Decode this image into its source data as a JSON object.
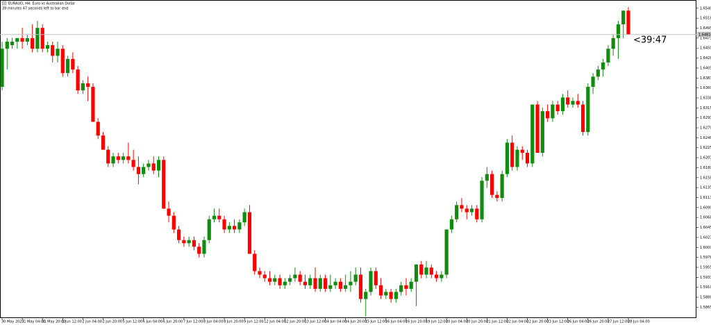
{
  "chart_data": {
    "type": "candlestick",
    "title": "EURAUD, H4: Euro vs Australian Dollar",
    "subtitle": "39 minutes 47 seconds left to bar end",
    "countdown": "<39:47",
    "up_color": "#118c11",
    "down_color": "#ff0000",
    "categories": [
      "30 May 2023",
      null,
      null,
      null,
      "31 May 04:00",
      null,
      null,
      null,
      "31 May 20:00",
      null,
      null,
      null,
      "1 Jun 12:00",
      null,
      null,
      null,
      "2 Jun 04:00",
      null,
      null,
      null,
      "2 Jun 20:00",
      null,
      null,
      null,
      "5 Jun 12:00",
      null,
      null,
      null,
      "6 Jun 04:00",
      null,
      null,
      null,
      "6 Jun 20:00",
      null,
      null,
      null,
      "7 Jun 12:00",
      null,
      null,
      null,
      "8 Jun 04:00",
      null,
      null,
      null,
      "8 Jun 20:00",
      null,
      null,
      null,
      "9 Jun 12:00",
      null,
      null,
      null,
      "12 Jun 04:00",
      null,
      null,
      null,
      "12 Jun 20:00",
      null,
      null,
      null,
      "13 Jun 12:00",
      null,
      null,
      null,
      "14 Jun 04:00",
      null,
      null,
      null,
      "14 Jun 20:00",
      null,
      null,
      null,
      "15 Jun 12:00",
      null,
      null,
      null,
      "16 Jun 04:00",
      null,
      null,
      null,
      "16 Jun 20:00",
      null,
      null,
      null,
      "19 Jun 12:00",
      null,
      null,
      null,
      "20 Jun 04:00",
      null,
      null,
      null,
      "20 Jun 20:00",
      null,
      null,
      null,
      "21 Jun 12:00",
      null,
      null,
      null,
      "22 Jun 04:00",
      null,
      null,
      null,
      "22 Jun 20:00",
      null,
      null,
      null,
      "23 Jun 12:00",
      null,
      null,
      null,
      "26 Jun 04:00",
      null,
      null,
      null,
      "26 Jun 20:00",
      null,
      null,
      null,
      "27 Jun 12:00",
      null,
      null,
      null,
      "28 Jun 04:00"
    ],
    "open": [
      1.6363,
      1.6449,
      1.6457,
      1.6465,
      1.6473,
      1.6465,
      1.6473,
      1.6449,
      1.6496,
      1.6449,
      1.6457,
      1.6433,
      1.6449,
      1.6394,
      1.6426,
      1.6402,
      1.6355,
      1.6371,
      1.6363,
      1.6284,
      1.6253,
      1.6221,
      1.619,
      1.6206,
      1.6198,
      1.6206,
      1.6198,
      1.6182,
      1.6166,
      1.6182,
      1.619,
      1.6174,
      1.6198,
      1.6088,
      1.6072,
      1.6041,
      1.6017,
      1.601,
      1.6017,
      1.6002,
      1.5986,
      1.6017,
      1.6064,
      1.6072,
      1.6064,
      1.6041,
      1.6049,
      1.6041,
      1.6057,
      1.608,
      1.5986,
      1.5947,
      1.5939,
      1.5931,
      1.5923,
      1.5931,
      1.5915,
      1.5923,
      1.5931,
      1.5939,
      1.5923,
      1.5915,
      1.5931,
      1.5907,
      1.5931,
      1.5907,
      1.5915,
      1.5923,
      1.5907,
      1.5915,
      1.5923,
      1.5939,
      1.5884,
      1.59,
      1.5947,
      1.5915,
      1.5892,
      1.59,
      1.5884,
      1.59,
      1.5915,
      1.5907,
      1.5923,
      1.5962,
      1.5939,
      1.5955,
      1.5939,
      1.5931,
      1.5939,
      1.6041,
      1.6064,
      1.6096,
      1.6088,
      1.608,
      1.6088,
      1.6064,
      1.6151,
      1.6166,
      1.6119,
      1.6112,
      1.6166,
      1.6237,
      1.6182,
      1.6221,
      1.6214,
      1.619,
      1.6323,
      1.6214,
      1.6308,
      1.6292,
      1.6323,
      1.6308,
      1.6339,
      1.6323,
      1.6331,
      1.6323,
      1.6261,
      1.6363,
      1.6386,
      1.6402,
      1.6418,
      1.6449,
      1.6473,
      1.6504,
      1.6535
    ],
    "high": [
      1.6465,
      1.6473,
      1.6473,
      1.6473,
      1.6496,
      1.6481,
      1.6504,
      1.6512,
      1.6504,
      1.6465,
      1.6465,
      1.6465,
      1.6457,
      1.6433,
      1.6441,
      1.641,
      1.6378,
      1.6386,
      1.6371,
      1.6292,
      1.6261,
      1.6229,
      1.6214,
      1.6214,
      1.6214,
      1.6237,
      1.6221,
      1.6206,
      1.619,
      1.6198,
      1.6206,
      1.6206,
      1.6206,
      1.6104,
      1.608,
      1.6049,
      1.6025,
      1.6025,
      1.6025,
      1.601,
      1.6025,
      1.6072,
      1.6088,
      1.6088,
      1.6072,
      1.6057,
      1.6064,
      1.6064,
      1.6088,
      1.6096,
      1.5994,
      1.5955,
      1.5947,
      1.5947,
      1.5939,
      1.5939,
      1.5931,
      1.5939,
      1.5955,
      1.5947,
      1.5939,
      1.5939,
      1.5955,
      1.5939,
      1.5939,
      1.5939,
      1.5931,
      1.5931,
      1.5939,
      1.5947,
      1.5955,
      1.5955,
      1.5907,
      1.5955,
      1.5955,
      1.5931,
      1.5907,
      1.5907,
      1.5907,
      1.5923,
      1.5931,
      1.5931,
      1.5962,
      1.597,
      1.597,
      1.5962,
      1.5947,
      1.5947,
      1.6041,
      1.6072,
      1.6104,
      1.6112,
      1.6096,
      1.6096,
      1.6096,
      1.6159,
      1.6182,
      1.6174,
      1.6127,
      1.6174,
      1.6245,
      1.6253,
      1.6229,
      1.6229,
      1.6221,
      1.6323,
      1.6331,
      1.6316,
      1.6323,
      1.6331,
      1.6331,
      1.6347,
      1.6355,
      1.6339,
      1.6347,
      1.6331,
      1.6371,
      1.6394,
      1.641,
      1.6426,
      1.6457,
      1.6481,
      1.6512,
      1.6535,
      1.6543
    ],
    "low": [
      1.6355,
      1.6402,
      1.6449,
      1.6449,
      1.6449,
      1.6457,
      1.6441,
      1.6441,
      1.6441,
      1.6441,
      1.6418,
      1.6418,
      1.6386,
      1.6386,
      1.6394,
      1.6347,
      1.6347,
      1.6331,
      1.6284,
      1.6245,
      1.6221,
      1.6182,
      1.6182,
      1.619,
      1.619,
      1.619,
      1.6174,
      1.6143,
      1.6159,
      1.6174,
      1.6166,
      1.6159,
      1.6088,
      1.6057,
      1.6033,
      1.601,
      1.6002,
      1.6002,
      1.5994,
      1.5978,
      1.5978,
      1.601,
      1.6057,
      1.6057,
      1.6033,
      1.6033,
      1.6033,
      1.6033,
      1.6049,
      1.5986,
      1.5939,
      1.5931,
      1.5923,
      1.5915,
      1.5915,
      1.5907,
      1.5907,
      1.5915,
      1.5923,
      1.5915,
      1.5907,
      1.5907,
      1.59,
      1.59,
      1.59,
      1.59,
      1.5907,
      1.59,
      1.59,
      1.59,
      1.5915,
      1.5876,
      1.5845,
      1.5892,
      1.5907,
      1.5884,
      1.5884,
      1.5876,
      1.5876,
      1.5892,
      1.5892,
      1.59,
      1.5868,
      1.5931,
      1.5931,
      1.5931,
      1.5923,
      1.5923,
      1.5931,
      1.6033,
      1.6057,
      1.608,
      1.6064,
      1.6072,
      1.6057,
      1.6057,
      1.6135,
      1.6112,
      1.6104,
      1.6104,
      1.6159,
      1.6174,
      1.6174,
      1.6198,
      1.6182,
      1.6182,
      1.6214,
      1.6206,
      1.6284,
      1.6284,
      1.63,
      1.63,
      1.6316,
      1.6316,
      1.6316,
      1.6253,
      1.6253,
      1.6347,
      1.6378,
      1.6386,
      1.641,
      1.6433,
      1.6426,
      1.6473,
      1.6481
    ],
    "close": [
      1.6449,
      1.6465,
      1.6465,
      1.6473,
      1.6465,
      1.6473,
      1.6449,
      1.6496,
      1.6449,
      1.6457,
      1.6433,
      1.6449,
      1.6394,
      1.6426,
      1.6402,
      1.6355,
      1.6371,
      1.6363,
      1.6284,
      1.6253,
      1.6221,
      1.619,
      1.6206,
      1.6198,
      1.6206,
      1.6198,
      1.6182,
      1.6166,
      1.6182,
      1.619,
      1.6174,
      1.6198,
      1.6088,
      1.6072,
      1.6041,
      1.6017,
      1.601,
      1.6017,
      1.6002,
      1.5986,
      1.6017,
      1.6064,
      1.6072,
      1.6064,
      1.6041,
      1.6049,
      1.6041,
      1.6057,
      1.608,
      1.5986,
      1.5947,
      1.5939,
      1.5931,
      1.5923,
      1.5931,
      1.5915,
      1.5923,
      1.5931,
      1.5939,
      1.5923,
      1.5915,
      1.5931,
      1.5907,
      1.5931,
      1.5907,
      1.5915,
      1.5923,
      1.5907,
      1.5915,
      1.5923,
      1.5939,
      1.5884,
      1.59,
      1.5947,
      1.5915,
      1.5892,
      1.59,
      1.5884,
      1.59,
      1.5915,
      1.5907,
      1.5923,
      1.5962,
      1.5939,
      1.5955,
      1.5939,
      1.5931,
      1.5939,
      1.6041,
      1.6064,
      1.6096,
      1.6088,
      1.608,
      1.6088,
      1.6064,
      1.6151,
      1.6166,
      1.6119,
      1.6112,
      1.6166,
      1.6237,
      1.6182,
      1.6221,
      1.6214,
      1.619,
      1.6323,
      1.6214,
      1.6308,
      1.6292,
      1.6323,
      1.6308,
      1.6339,
      1.6323,
      1.6331,
      1.6323,
      1.6261,
      1.6363,
      1.6386,
      1.6402,
      1.6418,
      1.6449,
      1.6473,
      1.6504,
      1.6535,
      1.6481
    ],
    "current_price": {
      "value": 1.6481,
      "label": "1.64810"
    },
    "ylim": [
      1.5841,
      1.6559
    ],
    "yticks": [
      1.65405,
      {
        "value": 1.6518,
        "label": "1.65180"
      },
      1.64955,
      {
        "value": 1.6473,
        "label": "1.64730"
      },
      1.64505,
      {
        "value": 1.6428,
        "label": "1.64280"
      },
      1.64055,
      {
        "value": 1.6383,
        "label": "1.63830"
      },
      1.63605,
      {
        "value": 1.6338,
        "label": "1.63380"
      },
      1.63155,
      {
        "value": 1.6293,
        "label": "1.62930"
      },
      1.62705,
      {
        "value": 1.6248,
        "label": "1.62480"
      },
      1.62255,
      {
        "value": 1.6203,
        "label": "1.62030"
      },
      1.61805,
      {
        "value": 1.6158,
        "label": "1.61580"
      },
      1.61355,
      {
        "value": 1.6113,
        "label": "1.61130"
      },
      1.60905,
      {
        "value": 1.6068,
        "label": "1.60680"
      },
      1.60455,
      {
        "value": 1.6023,
        "label": "1.60230"
      },
      1.60005,
      {
        "value": 1.5978,
        "label": "1.59780"
      },
      1.59555,
      {
        "value": 1.5933,
        "label": "1.59330"
      },
      1.59105,
      {
        "value": 1.5888,
        "label": "1.58880"
      },
      1.58655
    ]
  }
}
